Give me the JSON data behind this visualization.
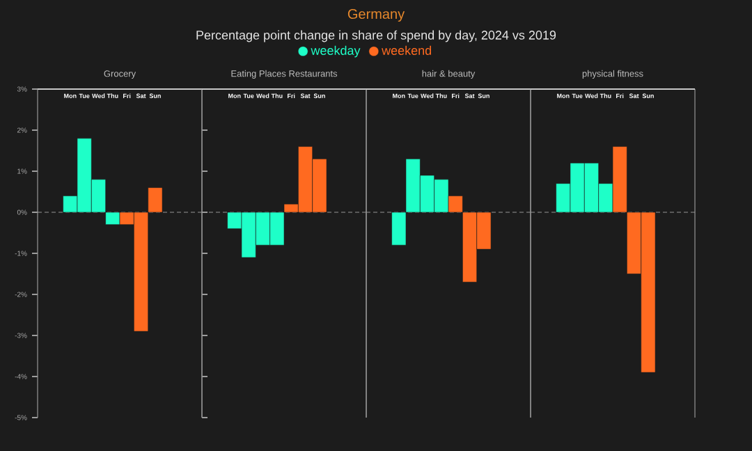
{
  "chart_data": [
    {
      "type": "other",
      "title": "Germany",
      "subtitle": "Percentage point change in share of spend by day, 2024 vs 2019"
    },
    {
      "type": "bar",
      "title": "Grocery",
      "categories": [
        "Mon",
        "Tue",
        "Wed",
        "Thu",
        "Fri",
        "Sat",
        "Sun"
      ],
      "legend": "top",
      "series": [
        {
          "name": "weekday",
          "color": "#1effc8",
          "values": [
            0.4,
            1.8,
            0.8,
            -0.3,
            null,
            null,
            null
          ]
        },
        {
          "name": "weekend",
          "color": "#ff6a20",
          "values": [
            null,
            null,
            null,
            null,
            -0.3,
            -2.9,
            0.6
          ]
        }
      ],
      "ylim": [
        -5,
        3
      ],
      "yticks": [
        {
          "value": -5,
          "label": "-5%"
        },
        {
          "value": -4,
          "label": "-4%"
        },
        {
          "value": -3,
          "label": "-3%"
        },
        {
          "value": -2,
          "label": "-2%"
        },
        {
          "value": -1,
          "label": "-1%"
        },
        {
          "value": 0,
          "label": "0%"
        },
        {
          "value": 1,
          "label": "1%"
        },
        {
          "value": 2,
          "label": "2%"
        },
        {
          "value": 3,
          "label": "3%"
        }
      ]
    },
    {
      "type": "bar",
      "title": "Eating Places Restaurants",
      "categories": [
        "Mon",
        "Tue",
        "Wed",
        "Thu",
        "Fri",
        "Sat",
        "Sun"
      ],
      "tick_labels": "x",
      "series": [
        {
          "color": "#1effc8",
          "values": [
            -0.4,
            -1.1,
            -0.8,
            -0.8,
            null,
            null,
            null
          ]
        },
        {
          "color": "#ff6a20",
          "values": [
            null,
            null,
            null,
            null,
            0.2,
            1.6,
            1.3
          ]
        }
      ],
      "ylim": [
        -5,
        3
      ]
    },
    {
      "type": "bar",
      "title": "hair & beauty",
      "categories": [
        "Mon",
        "Tue",
        "Wed",
        "Thu",
        "Fri",
        "Sat",
        "Sun"
      ],
      "tick_labels": "x",
      "series": [
        {
          "color": "#1effc8",
          "values": [
            -0.8,
            1.3,
            0.9,
            0.8,
            null,
            null,
            null
          ]
        },
        {
          "color": "#ff6a20",
          "values": [
            null,
            null,
            null,
            null,
            0.4,
            -1.7,
            -0.9
          ]
        }
      ],
      "ylim": [
        -5,
        3
      ]
    },
    {
      "type": "bar",
      "title": "physical fitness",
      "categories": [
        "Mon",
        "Tue",
        "Wed",
        "Thu",
        "Fri",
        "Sat",
        "Sun"
      ],
      "tick_labels": "x",
      "series": [
        {
          "color": "#1effc8",
          "values": [
            0.7,
            1.2,
            1.2,
            0.7,
            null,
            null,
            null
          ]
        },
        {
          "color": "#ff6a20",
          "values": [
            null,
            null,
            null,
            null,
            1.6,
            -1.5,
            -3.9
          ]
        }
      ],
      "ylim": [
        -5,
        3
      ]
    }
  ]
}
